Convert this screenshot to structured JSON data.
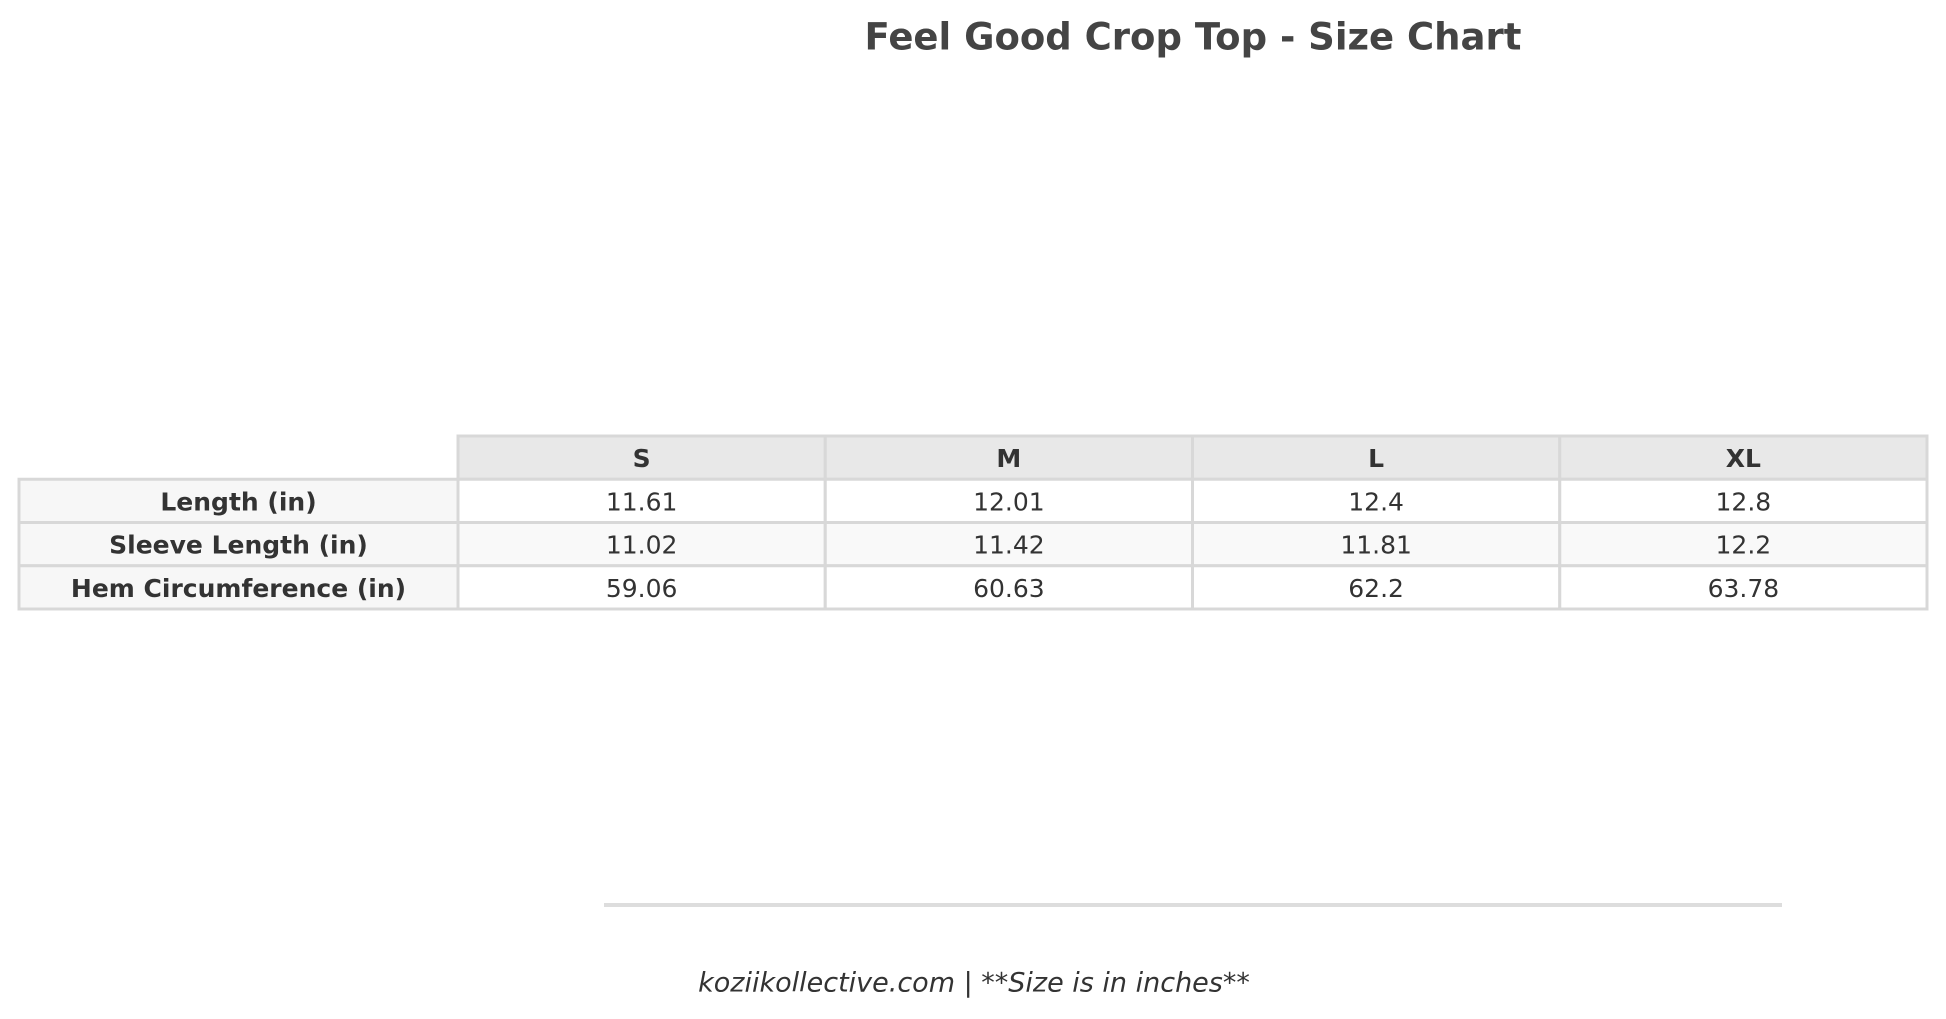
{
  "header": {
    "title": "Feel Good Crop Top - Size Chart"
  },
  "table": {
    "columns": [
      "S",
      "M",
      "L",
      "XL"
    ],
    "rows": [
      {
        "label": "Length (in)",
        "values": [
          "11.61",
          "12.01",
          "12.4",
          "12.8"
        ]
      },
      {
        "label": "Sleeve Length (in)",
        "values": [
          "11.02",
          "11.42",
          "11.81",
          "12.2"
        ]
      },
      {
        "label": "Hem Circumference (in)",
        "values": [
          "59.06",
          "60.63",
          "62.2",
          "63.78"
        ]
      }
    ]
  },
  "footer": {
    "text": "koziikollective.com | **Size is in inches**"
  }
}
